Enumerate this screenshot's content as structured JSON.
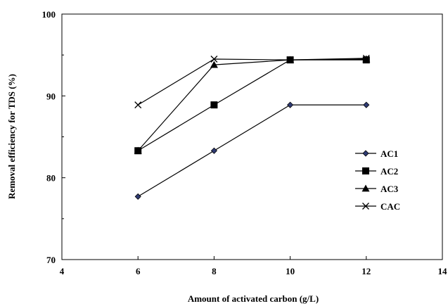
{
  "chart_data": {
    "type": "line",
    "title": "",
    "xlabel": "Amount of activated carbon (g/L)",
    "ylabel": "Removal efficiency for TDS (%)",
    "xlim": [
      4,
      14
    ],
    "ylim": [
      70,
      100
    ],
    "xticks": [
      4,
      6,
      8,
      10,
      12,
      14
    ],
    "yticks": [
      70,
      80,
      90,
      100
    ],
    "x_tick_labels": [
      "4",
      "6",
      "8",
      "10",
      "12",
      "14"
    ],
    "y_tick_labels": [
      "70",
      "80",
      "90",
      "100"
    ],
    "grid": false,
    "legend_position": "right",
    "x": [
      6,
      8,
      10,
      12
    ],
    "series": [
      {
        "name": "AC1",
        "marker": "diamond",
        "values": [
          77.7,
          83.3,
          88.9,
          88.9
        ]
      },
      {
        "name": "AC2",
        "marker": "square",
        "values": [
          83.3,
          88.9,
          94.4,
          94.4
        ]
      },
      {
        "name": "AC3",
        "marker": "triangle",
        "values": [
          83.3,
          93.8,
          94.4,
          94.5
        ]
      },
      {
        "name": "CAC",
        "marker": "cross",
        "values": [
          88.9,
          94.5,
          94.4,
          94.6
        ]
      }
    ],
    "colors": {
      "line": "#000000",
      "diamond_fill": "#2f3b73"
    }
  }
}
